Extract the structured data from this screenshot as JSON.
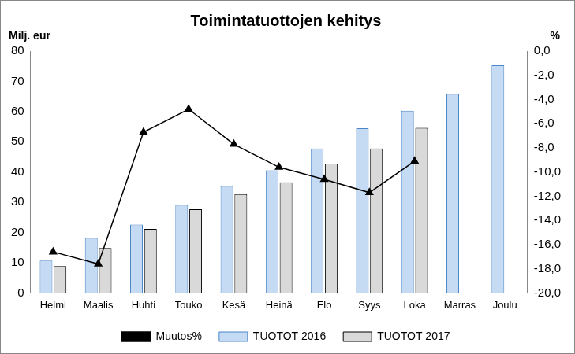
{
  "chart_data": {
    "type": "bar",
    "title": "Toimintatuottojen kehitys",
    "ylabel": "Milj. eur",
    "y2label": "%",
    "categories": [
      "Helmi",
      "Maalis",
      "Huhti",
      "Touko",
      "Kesä",
      "Heinä",
      "Elo",
      "Syys",
      "Loka",
      "Marras",
      "Joulu"
    ],
    "series": [
      {
        "name": "TUOTOT 2016",
        "type": "bar",
        "color": "#c5dbf4",
        "values": [
          10.7,
          18.2,
          22.6,
          29.1,
          35.4,
          40.6,
          47.8,
          54.5,
          60.3,
          65.8,
          75.3
        ]
      },
      {
        "name": "TUOTOT 2017",
        "type": "bar",
        "color": "#d9d9d9",
        "values": [
          8.9,
          14.9,
          21.2,
          27.7,
          32.7,
          36.6,
          42.8,
          47.8,
          54.6,
          null,
          null
        ]
      },
      {
        "name": "Muutos%",
        "type": "line",
        "axis": "y2",
        "color": "#000000",
        "marker": "triangle",
        "line_style": "solid",
        "values": [
          -16.6,
          -17.6,
          -6.7,
          -4.8,
          -7.7,
          -9.6,
          -10.6,
          -11.7,
          -9.1,
          null,
          null
        ]
      }
    ],
    "ylim": [
      0,
      80
    ],
    "yticks": [
      0,
      10,
      20,
      30,
      40,
      50,
      60,
      70,
      80
    ],
    "y2lim": [
      -20,
      0
    ],
    "y2ticks": [
      {
        "value": -20,
        "label": "-20,0"
      },
      {
        "value": -18,
        "label": "-18,0"
      },
      {
        "value": -16,
        "label": "-16,0"
      },
      {
        "value": -14,
        "label": "-14,0"
      },
      {
        "value": -12,
        "label": "-12,0"
      },
      {
        "value": -10,
        "label": "-10,0"
      },
      {
        "value": -8,
        "label": "-8,0"
      },
      {
        "value": -6,
        "label": "-6,0"
      },
      {
        "value": -4,
        "label": "-4,0"
      },
      {
        "value": -2,
        "label": "-2,0"
      },
      {
        "value": 0,
        "label": "0,0"
      }
    ],
    "grid": false,
    "legend": "bottom"
  }
}
